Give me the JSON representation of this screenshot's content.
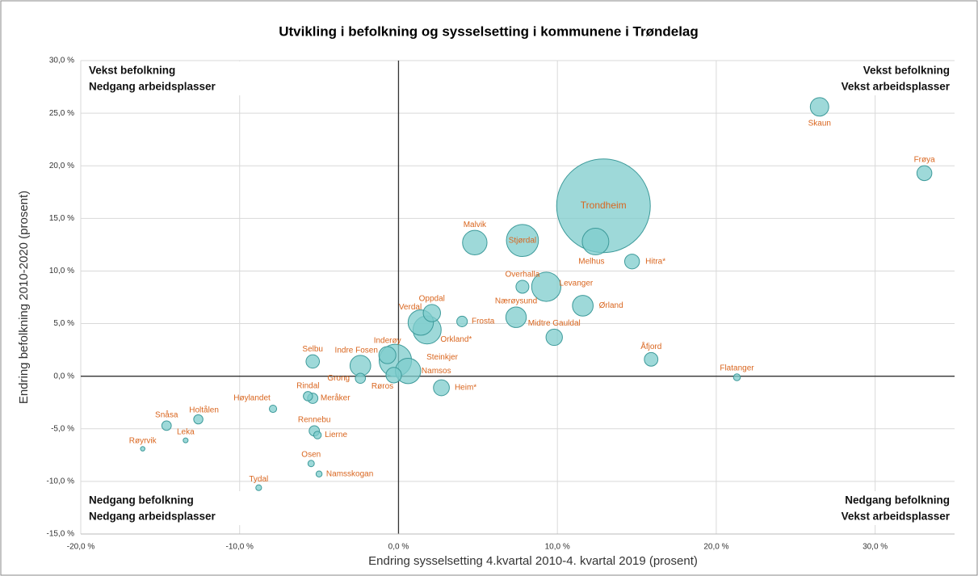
{
  "chart_data": {
    "type": "bubble",
    "title": "Utvikling i befolkning og sysselsetting i kommunene i Trøndelag",
    "x_label": "Endring sysselsetting 4.kvartal 2010-4. kvartal 2019 (prosent)",
    "y_label": "Endring befolkning 2010-2020 (prosent)",
    "annotations": [
      [
        "Vekst befolkning",
        "Nedgang arbeidsplasser"
      ],
      [
        "Vekst befolkning",
        "Vekst arbeidsplasser"
      ],
      [
        "Nedgang befolkning",
        "Nedgang arbeidsplasser"
      ],
      [
        "Nedgang befolkning",
        "Vekst arbeidsplasser"
      ]
    ],
    "labels": [
      "Skaun",
      "Frøya",
      "Trondheim",
      "Melhus",
      "Hitra*",
      "Malvik",
      "Stjørdal",
      "Overhalla",
      "Levanger",
      "Ørland",
      "Midtre Gauldal",
      "Nærøysund",
      "Frosta",
      "Oppdal",
      "Verdal",
      "Orkland*",
      "Steinkjer",
      "Inderøy",
      "Namsos",
      "Røros",
      "Indre Fosen",
      "Grong",
      "Selbu",
      "Heim*",
      "Flatanger",
      "Åfjord",
      "Rindal",
      "Meråker",
      "Høylandet",
      "Holtålen",
      "Snåsa",
      "Leka",
      "Røyrvik",
      "Rennebu",
      "Lierne",
      "Osen",
      "Namsskogan",
      "Tydal"
    ],
    "x": [
      26.5,
      33.1,
      12.9,
      12.4,
      14.7,
      4.8,
      7.8,
      7.8,
      9.3,
      11.6,
      9.8,
      7.4,
      4.0,
      2.1,
      1.4,
      1.8,
      -0.2,
      -0.7,
      0.6,
      -0.3,
      -2.4,
      -2.4,
      -5.4,
      2.7,
      21.3,
      15.9,
      -5.7,
      -5.4,
      -7.9,
      -12.6,
      -14.6,
      -13.4,
      -16.1,
      -5.3,
      -5.1,
      -5.5,
      -5.0,
      -8.8
    ],
    "values": [
      25.6,
      19.3,
      16.2,
      12.8,
      10.9,
      12.7,
      12.9,
      8.5,
      8.5,
      6.7,
      3.7,
      5.6,
      5.2,
      6.0,
      5.1,
      4.4,
      1.5,
      2.0,
      0.5,
      0.1,
      1.0,
      -0.2,
      1.4,
      -1.1,
      -0.1,
      1.6,
      -1.9,
      -2.1,
      -3.1,
      -4.1,
      -4.7,
      -6.1,
      -6.9,
      -5.2,
      -5.6,
      -8.3,
      -9.3,
      -10.6
    ],
    "sizes": [
      8000,
      5200,
      205000,
      16500,
      5100,
      14000,
      24000,
      3900,
      20000,
      10000,
      6300,
      9800,
      2600,
      7000,
      15000,
      18500,
      24500,
      6800,
      15000,
      5600,
      10000,
      2400,
      4200,
      5900,
      1100,
      4300,
      2000,
      2500,
      1250,
      2000,
      2100,
      560,
      460,
      2500,
      1350,
      950,
      850,
      780
    ],
    "color": "#7ecccc",
    "edge_color": "#3d9a9a",
    "xlim": [
      -20,
      35
    ],
    "xticks": [
      {
        "value": -20,
        "label": "-20,0 %"
      },
      {
        "value": -10,
        "label": "-10,0 %"
      },
      {
        "value": 0,
        "label": "0,0 %"
      },
      {
        "value": 10,
        "label": "10,0 %"
      },
      {
        "value": 20,
        "label": "20,0 %"
      },
      {
        "value": 30,
        "label": "30,0 %"
      }
    ],
    "ylim": [
      -15,
      30
    ],
    "yticks": [
      {
        "value": -15,
        "label": "-15,0 %"
      },
      {
        "value": -10,
        "label": "-10,0 %"
      },
      {
        "value": -5,
        "label": "-5,0 %"
      },
      {
        "value": 0,
        "label": "0,0 %"
      },
      {
        "value": 5,
        "label": "5,0 %"
      },
      {
        "value": 10,
        "label": "10,0 %"
      },
      {
        "value": 15,
        "label": "15,0 %"
      },
      {
        "value": 20,
        "label": "20,0 %"
      },
      {
        "value": 25,
        "label": "25,0 %"
      },
      {
        "value": 30,
        "label": "30,0 %"
      }
    ],
    "grid": true
  }
}
